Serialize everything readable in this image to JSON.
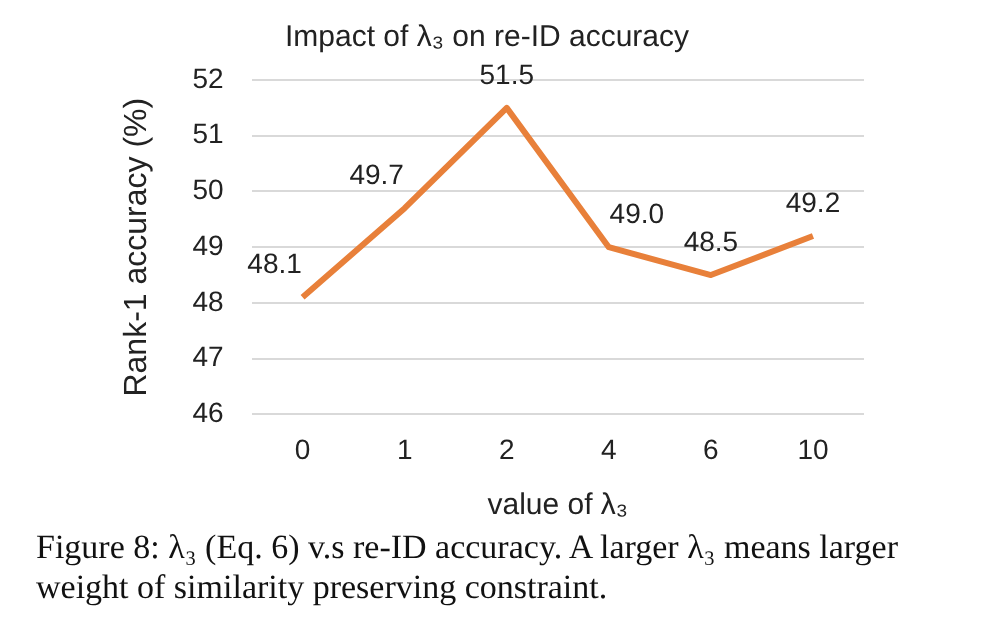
{
  "chart_data": {
    "type": "line",
    "title": "Impact of λ₃ on re-ID accuracy",
    "xlabel": "value of λ₃",
    "ylabel": "Rank-1 accuracy (%)",
    "categories": [
      "0",
      "1",
      "2",
      "4",
      "6",
      "10"
    ],
    "series": [
      {
        "color": "#e8803a",
        "values": [
          48.1,
          49.7,
          51.5,
          49.0,
          48.5,
          49.2
        ]
      }
    ],
    "value_labels": [
      "48.1",
      "49.7",
      "51.5",
      "49.0",
      "48.5",
      "49.2"
    ],
    "ylim": [
      46,
      52
    ],
    "yticks": [
      46,
      47,
      48,
      49,
      50,
      51,
      52
    ],
    "grid": "y",
    "legend": false,
    "marker": "none",
    "line_style": "solid",
    "annotations": [
      "Figure 8: λ₃ (Eq. 6) v.s re-ID accuracy. A larger λ₃ means larger weight of similarity preserving constraint."
    ]
  }
}
